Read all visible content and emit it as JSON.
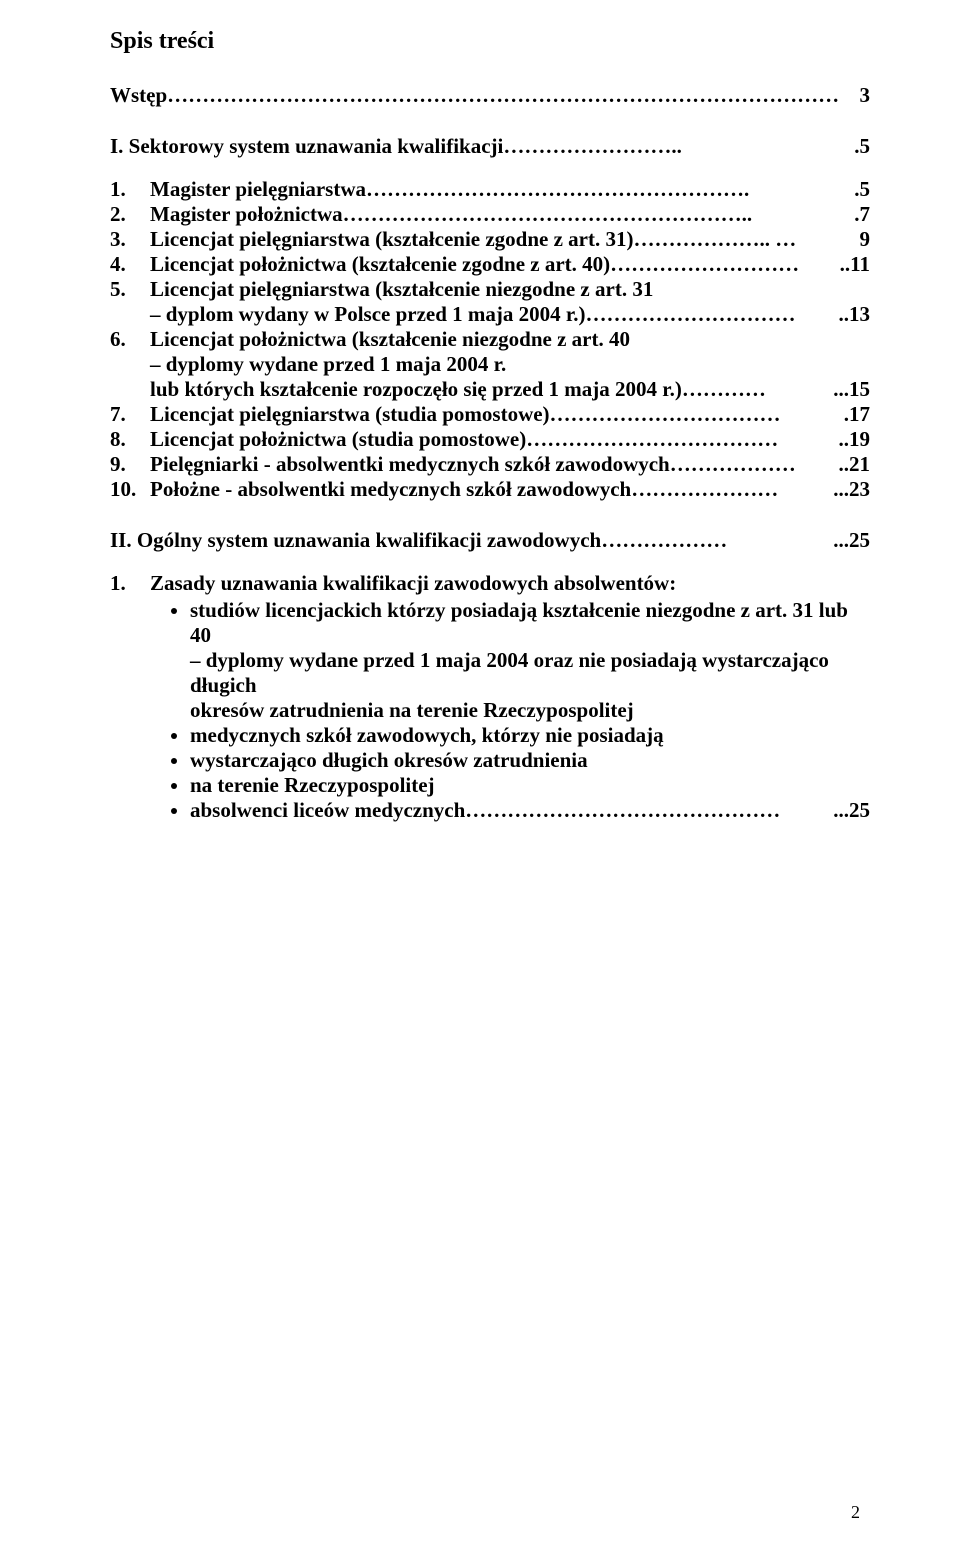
{
  "toc_title": "Spis treści",
  "intro": {
    "label": "Wstęp",
    "dots": "……………………………………………………………………………………",
    "page": "3"
  },
  "section1": {
    "label": "I.  Sektorowy system uznawania kwalifikacji",
    "dots": "……………………..",
    "page": ".5"
  },
  "items1": [
    {
      "num": "1.",
      "label": "Magister pielęgniarstwa",
      "dots": "……………………………………………….",
      "page": ".5"
    },
    {
      "num": "2.",
      "label": "Magister położnictwa",
      "dots": "…………………………………………………..",
      "page": ".7"
    },
    {
      "num": "3.",
      "label": "Licencjat pielęgniarstwa (kształcenie zgodne z art. 31)",
      "dots": "……………….. …",
      "page": "9"
    },
    {
      "num": "4.",
      "label": "Licencjat położnictwa (kształcenie zgodne z art. 40)",
      "dots": "………………………",
      "page": "..11"
    },
    {
      "num": "5.",
      "label": "Licencjat pielęgniarstwa (kształcenie niezgodne z art. 31",
      "sub1": "– dyplom wydany w Polsce przed 1 maja 2004 r.)",
      "sub1_dots": "…………………………",
      "sub1_page": "..13"
    },
    {
      "num": "6.",
      "label": "Licencjat położnictwa (kształcenie niezgodne z art. 40",
      "sub1": "– dyplomy wydane przed 1 maja 2004 r.",
      "sub2": "lub których kształcenie rozpoczęło się przed 1 maja 2004 r.)",
      "sub2_dots": "…………",
      "sub2_page": "...15"
    },
    {
      "num": "7.",
      "label": "Licencjat pielęgniarstwa (studia pomostowe)",
      "dots": "……………………………",
      "page": ".17"
    },
    {
      "num": "8.",
      "label": "Licencjat położnictwa (studia pomostowe)",
      "dots": "………………………………",
      "page": "..19"
    },
    {
      "num": "9.",
      "label": "Pielęgniarki - absolwentki medycznych szkół zawodowych",
      "dots": "………………",
      "page": "..21"
    },
    {
      "num": "10.",
      "label": "Położne - absolwentki medycznych szkół zawodowych",
      "dots": "…………………",
      "page": "...23"
    }
  ],
  "section2": {
    "label": "II.  Ogólny system uznawania kwalifikacji zawodowych",
    "dots": "………………",
    "page": "...25"
  },
  "items2": [
    {
      "num": "1.",
      "label": "Zasady uznawania kwalifikacji zawodowych absolwentów:",
      "bullets": [
        {
          "lines": [
            "studiów licencjackich którzy posiadają kształcenie niezgodne z art. 31 lub 40",
            "– dyplomy wydane przed 1 maja 2004 oraz nie posiadają wystarczająco długich",
            "okresów zatrudnienia na terenie Rzeczypospolitej"
          ]
        },
        {
          "lines": [
            "medycznych szkół zawodowych, którzy nie posiadają"
          ]
        },
        {
          "lines": [
            "wystarczająco długich okresów zatrudnienia"
          ]
        },
        {
          "lines": [
            "na terenie Rzeczypospolitej"
          ]
        },
        {
          "lines": [
            "absolwenci liceów medycznych"
          ],
          "last_dots": "………………………………………",
          "last_page": "...25"
        }
      ]
    }
  ],
  "page_number": "2",
  "colors": {
    "text": "#000000",
    "bg": "#ffffff"
  },
  "fontsizes": {
    "title": 24,
    "body": 21,
    "pagenum": 18
  }
}
